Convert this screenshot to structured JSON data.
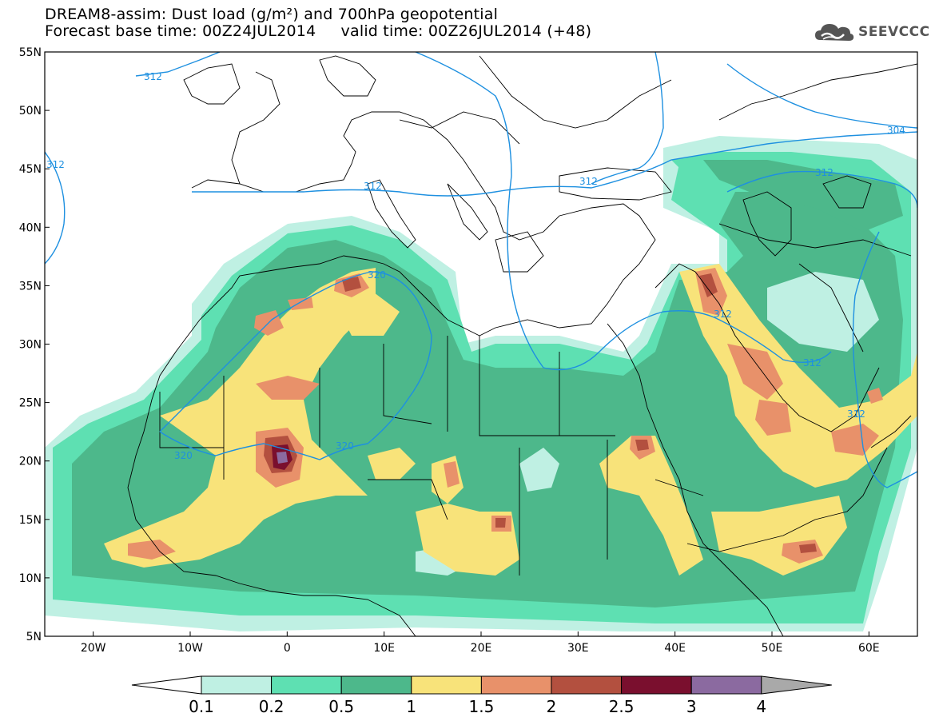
{
  "header": {
    "title_line1": "DREAM8-assim: Dust load (g/m²) and 700hPa geopotential",
    "title_line2": "Forecast base time: 00Z24JUL2014     valid time: 00Z26JUL2014 (+48)"
  },
  "logo": {
    "text": "SEEVCCC",
    "icon": "cloud-logo-icon"
  },
  "map": {
    "lon_range": [
      -25,
      65
    ],
    "lat_range": [
      5,
      55
    ],
    "lat_labels": [
      "55N",
      "50N",
      "45N",
      "40N",
      "35N",
      "30N",
      "25N",
      "20N",
      "15N",
      "10N",
      "5N"
    ],
    "lon_labels": [
      "20W",
      "10W",
      "0",
      "10E",
      "20E",
      "30E",
      "40E",
      "50E",
      "60E"
    ],
    "contour_labels": [
      "312",
      "312",
      "312",
      "312",
      "304",
      "312",
      "312",
      "312",
      "320",
      "320",
      "320",
      "312"
    ]
  },
  "colorbar": {
    "labels": [
      "0.1",
      "0.2",
      "0.5",
      "1",
      "1.5",
      "2",
      "2.5",
      "3",
      "4"
    ],
    "colors": {
      "lt01": "#ffffff",
      "b1": "#bff0e3",
      "b2": "#5ee0b2",
      "b3": "#4db88b",
      "b4": "#f8e37a",
      "b5": "#e8916a",
      "b6": "#b3503f",
      "b7": "#7a0f2e",
      "b8": "#8b6aa0",
      "gt4": "#a9a9a9"
    }
  },
  "colors": {
    "contour": "#1e90e0",
    "coast": "#000000",
    "land_bg": "#ffffff"
  }
}
